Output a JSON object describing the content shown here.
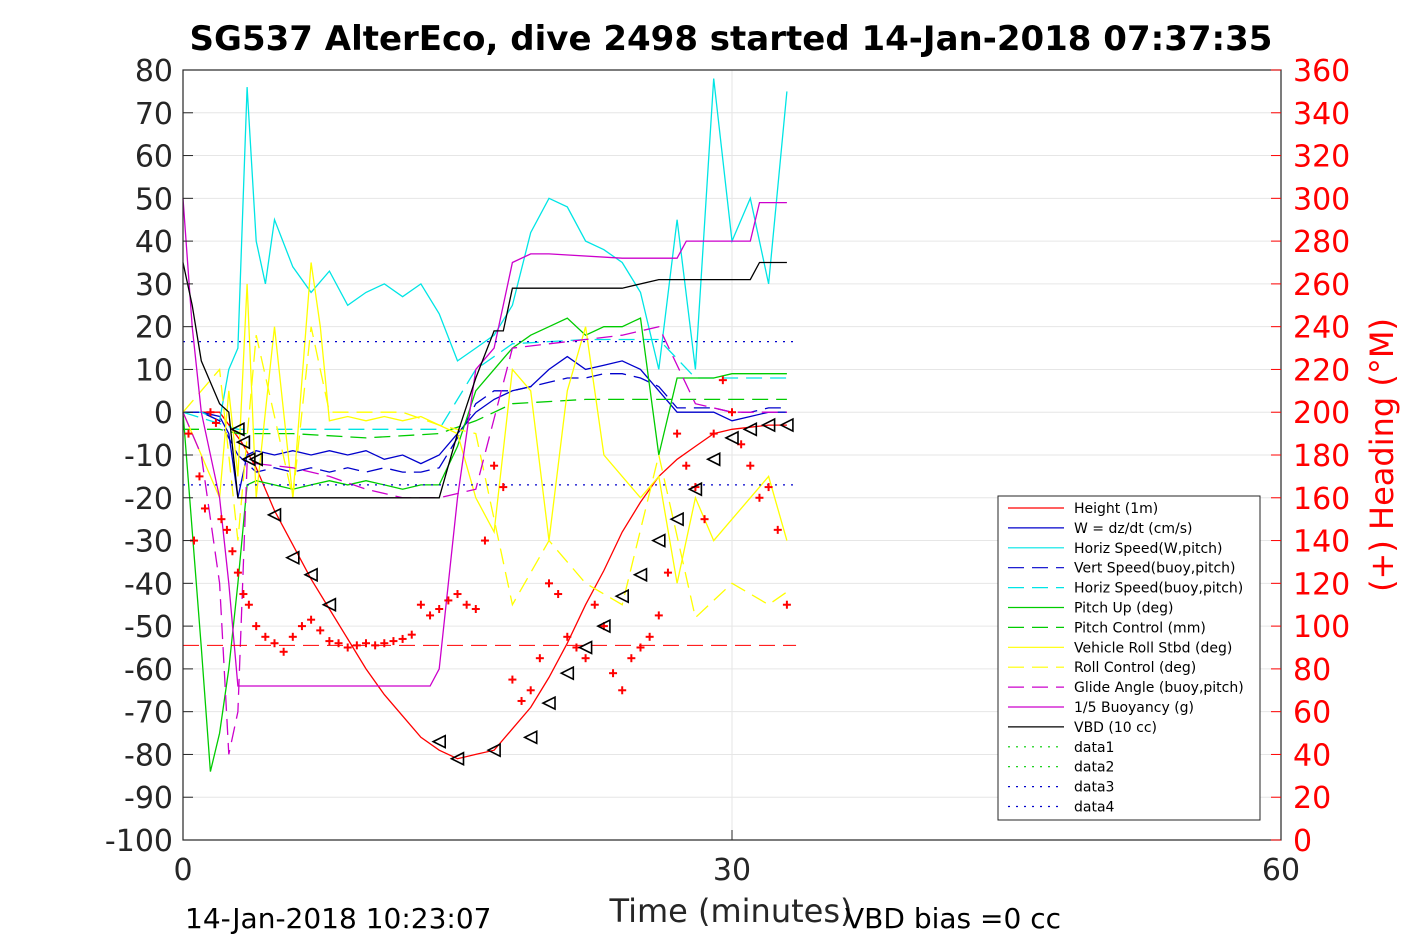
{
  "chart_data": {
    "type": "line",
    "title": "SG537 AlterEco, dive 2498 started 14-Jan-2018 07:37:35",
    "xlabel": "Time (minutes)",
    "ylabel_right": "(+) Heading (°M)",
    "xlim": [
      0,
      60
    ],
    "ylim_left": [
      -100,
      80
    ],
    "ylim_right": [
      0,
      360
    ],
    "x_ticks": [
      "0",
      "30",
      "60"
    ],
    "y_ticks_left": [
      "80",
      "70",
      "60",
      "50",
      "40",
      "30",
      "20",
      "10",
      "0",
      "-10",
      "-20",
      "-30",
      "-40",
      "-50",
      "-60",
      "-70",
      "-80",
      "-90",
      "-100"
    ],
    "y_ticks_right": [
      "360",
      "340",
      "320",
      "300",
      "280",
      "260",
      "240",
      "220",
      "200",
      "180",
      "160",
      "140",
      "120",
      "100",
      "80",
      "60",
      "40",
      "20",
      "0"
    ],
    "grid": true,
    "legend_position": "lower-right",
    "footer_left": "14-Jan-2018 10:23:07",
    "footer_right": "VBD bias =0 cc",
    "series": [
      {
        "name": "Height (1m)",
        "color": "#ff0000",
        "style": "solid",
        "x": [
          0,
          1,
          2,
          3.2,
          4,
          5,
          6,
          7,
          8,
          9,
          10,
          11,
          12,
          13,
          14,
          15,
          16,
          17,
          18,
          19,
          20,
          21,
          22,
          23,
          24,
          25,
          26,
          27,
          28,
          29,
          30,
          31,
          32,
          33
        ],
        "y": [
          0,
          0,
          0,
          -7,
          -13,
          -23,
          -31,
          -39,
          -46,
          -53,
          -60,
          -66,
          -71,
          -76,
          -79,
          -81,
          -80,
          -79,
          -74,
          -69,
          -62,
          -54,
          -45,
          -37,
          -28,
          -21,
          -15,
          -11,
          -8,
          -5,
          -4,
          -3.5,
          -3,
          -3
        ]
      },
      {
        "name": "W = dz/dt (cm/s)",
        "color": "#0000cc",
        "style": "solid",
        "x": [
          0,
          1,
          2,
          2.5,
          3,
          3.5,
          4,
          5,
          6,
          7,
          8,
          9,
          10,
          11,
          12,
          13,
          14,
          15,
          16,
          17,
          18,
          19,
          20,
          21,
          22,
          23,
          24,
          25,
          26,
          27,
          28,
          29,
          30,
          31,
          32,
          33
        ],
        "y": [
          0,
          0,
          -1,
          -5,
          -20,
          -10,
          -9,
          -10,
          -9,
          -10,
          -9,
          -10,
          -9,
          -11,
          -10,
          -12,
          -10,
          -5,
          0,
          3,
          5,
          6,
          10,
          13,
          10,
          11,
          12,
          10,
          5,
          0,
          0,
          0,
          -2,
          -1,
          0,
          0
        ]
      },
      {
        "name": "Horiz Speed(W,pitch)",
        "color": "#00e5e5",
        "style": "solid",
        "x": [
          0,
          1,
          2,
          2.5,
          3,
          3.5,
          4,
          4.5,
          5,
          6,
          7,
          8,
          9,
          10,
          11,
          12,
          13,
          14,
          15,
          16,
          17,
          18,
          19,
          20,
          21,
          22,
          23,
          24,
          25,
          26,
          27,
          28,
          29,
          30,
          31,
          32,
          33
        ],
        "y": [
          0,
          0,
          -2,
          10,
          15,
          76,
          40,
          30,
          45,
          34,
          28,
          33,
          25,
          28,
          30,
          27,
          30,
          23,
          12,
          15,
          18,
          25,
          42,
          50,
          48,
          40,
          38,
          35,
          28,
          10,
          45,
          10,
          78,
          40,
          50,
          30,
          75
        ]
      },
      {
        "name": "Vert Speed(buoy,pitch)",
        "color": "#0000cc",
        "style": "dashed",
        "x": [
          0,
          1,
          2,
          3,
          4,
          5,
          6,
          7,
          8,
          9,
          10,
          11,
          12,
          13,
          14,
          15,
          16,
          17,
          18,
          19,
          20,
          21,
          22,
          23,
          24,
          25,
          26,
          27,
          28,
          29,
          30,
          31,
          32,
          33
        ],
        "y": [
          0,
          0,
          -2,
          -10,
          -14,
          -13,
          -14,
          -13,
          -14,
          -13,
          -14,
          -13,
          -14,
          -14,
          -13,
          -6,
          2,
          5,
          5,
          6,
          7,
          8,
          8,
          9,
          9,
          8,
          6,
          1,
          1,
          1,
          0,
          0,
          1,
          1
        ]
      },
      {
        "name": "Horiz Speed(buoy,pitch)",
        "color": "#00e5e5",
        "style": "dashed",
        "x": [
          0,
          3,
          4,
          8,
          12,
          14,
          16,
          18,
          22,
          26,
          28,
          33
        ],
        "y": [
          0,
          -4,
          -4,
          -4,
          -4,
          -4,
          10,
          16,
          17,
          17,
          8,
          8
        ]
      },
      {
        "name": "Pitch Up (deg)",
        "color": "#00cc00",
        "style": "solid",
        "x": [
          0,
          1,
          1.5,
          2,
          2.5,
          3,
          3.5,
          4,
          5,
          6,
          7,
          8,
          9,
          10,
          11,
          12,
          13,
          14,
          15,
          16,
          17,
          18,
          19,
          20,
          21,
          22,
          23,
          24,
          25,
          26,
          27,
          28,
          29,
          30,
          31,
          32,
          33
        ],
        "y": [
          0,
          -55,
          -84,
          -75,
          -60,
          -40,
          -17,
          -16,
          -17,
          -18,
          -17,
          -16,
          -17,
          -16,
          -17,
          -18,
          -17,
          -17,
          -8,
          5,
          10,
          15,
          18,
          20,
          22,
          18,
          20,
          20,
          22,
          -10,
          8,
          8,
          8,
          9,
          9,
          9,
          9
        ]
      },
      {
        "name": "Pitch Control (mm)",
        "color": "#00cc00",
        "style": "dashed",
        "x": [
          0,
          2,
          3,
          6,
          10,
          14,
          16,
          18,
          22,
          26,
          33
        ],
        "y": [
          -4,
          -4,
          -5,
          -5,
          -6,
          -5,
          -2,
          2,
          3,
          3,
          3
        ]
      },
      {
        "name": "Vehicle Roll Stbd (deg)",
        "color": "#ffff00",
        "style": "solid",
        "x": [
          0,
          1,
          2,
          2.5,
          3,
          3.5,
          4,
          5,
          6,
          7,
          7.5,
          8,
          9,
          10,
          11,
          12,
          13,
          14,
          15,
          16,
          17,
          18,
          19,
          20,
          21,
          22,
          23,
          24,
          25,
          26,
          27,
          28,
          29,
          30,
          31,
          32,
          33
        ],
        "y": [
          0,
          -10,
          -20,
          5,
          -15,
          30,
          -20,
          20,
          -20,
          35,
          20,
          -2,
          -1,
          -2,
          -1,
          -2,
          -1,
          -3,
          -5,
          -20,
          -28,
          10,
          5,
          -30,
          5,
          20,
          -10,
          -15,
          -20,
          -15,
          -40,
          -20,
          -30,
          -25,
          -20,
          -15,
          -30
        ]
      },
      {
        "name": "Roll Control (deg)",
        "color": "#ffff00",
        "style": "dashed",
        "x": [
          0,
          2,
          3,
          4,
          6,
          7,
          8,
          12,
          14,
          16,
          18,
          20,
          22,
          24,
          26,
          28,
          30,
          32,
          33
        ],
        "y": [
          0,
          10,
          -30,
          18,
          -20,
          20,
          0,
          0,
          -3,
          -5,
          -45,
          -30,
          -40,
          -45,
          -10,
          -48,
          -40,
          -45,
          -42
        ]
      },
      {
        "name": "Glide Angle (buoy,pitch)",
        "color": "#cc00cc",
        "style": "dashed",
        "x": [
          0,
          1,
          2,
          2.5,
          3,
          3.5,
          4,
          6,
          8,
          10,
          12,
          14,
          16,
          18,
          20,
          22,
          24,
          26,
          28,
          30,
          32,
          33
        ],
        "y": [
          0,
          -10,
          -40,
          -80,
          -70,
          -12,
          -12,
          -13,
          -15,
          -18,
          -20,
          -20,
          -18,
          15,
          16,
          17,
          18,
          20,
          2,
          0,
          0,
          0
        ]
      },
      {
        "name": "1/5 Buoyancy (g)",
        "color": "#cc00cc",
        "style": "solid",
        "x": [
          0,
          0.5,
          1,
          2,
          2.5,
          3,
          3.5,
          4,
          8,
          12,
          13.5,
          14,
          15,
          16,
          17,
          18,
          19,
          20,
          24,
          27,
          27.5,
          29,
          31,
          31.5,
          33
        ],
        "y": [
          50,
          20,
          0,
          -20,
          -40,
          -64,
          -64,
          -64,
          -64,
          -64,
          -64,
          -60,
          -20,
          10,
          15,
          35,
          37,
          37,
          36,
          36,
          40,
          40,
          40,
          49,
          49
        ]
      },
      {
        "name": "VBD (10 cc)",
        "color": "#000000",
        "style": "solid",
        "x": [
          0,
          0.5,
          1,
          2,
          2.5,
          3,
          4,
          8,
          12,
          14,
          15,
          16,
          17,
          17.5,
          18,
          20,
          24,
          26,
          27,
          30,
          31,
          31.5,
          33
        ],
        "y": [
          35,
          25,
          12,
          2,
          0,
          -20,
          -20,
          -20,
          -20,
          -20,
          -5,
          8,
          19,
          19,
          29,
          29,
          29,
          31,
          31,
          31,
          31,
          35,
          35
        ]
      },
      {
        "name": "data1",
        "color": "#00cc00",
        "style": "dotted",
        "x": [],
        "y": []
      },
      {
        "name": "data2",
        "color": "#00cc00",
        "style": "dotted",
        "x": [],
        "y": []
      },
      {
        "name": "data3",
        "color": "#0000cc",
        "style": "dotted",
        "x": [
          0,
          33.5
        ],
        "y": [
          16.5,
          16.5
        ]
      },
      {
        "name": "data4",
        "color": "#0000cc",
        "style": "dotted",
        "x": [
          0,
          33.5
        ],
        "y": [
          -17,
          -17
        ]
      }
    ],
    "heading": {
      "axis": "right",
      "color": "#ff0000",
      "marker": "+",
      "mean": 91,
      "x": [
        0.3,
        0.6,
        0.9,
        1.2,
        1.5,
        1.8,
        2.1,
        2.4,
        2.7,
        3.0,
        3.3,
        3.6,
        4.0,
        4.5,
        5.0,
        5.5,
        6.0,
        6.5,
        7.0,
        7.5,
        8.0,
        8.5,
        9.0,
        9.5,
        10,
        10.5,
        11,
        11.5,
        12,
        12.5,
        13,
        13.5,
        14,
        14.5,
        15,
        15.5,
        16,
        16.5,
        17,
        17.5,
        18,
        18.5,
        19,
        19.5,
        20,
        20.5,
        21,
        21.5,
        22,
        22.5,
        23,
        23.5,
        24,
        24.5,
        25,
        25.5,
        26,
        26.5,
        27,
        27.5,
        28,
        28.5,
        29,
        29.5,
        30,
        30.5,
        31,
        31.5,
        32,
        32.5,
        33
      ],
      "y": [
        190,
        140,
        170,
        155,
        200,
        195,
        150,
        145,
        135,
        125,
        115,
        110,
        100,
        95,
        92,
        88,
        95,
        100,
        103,
        98,
        93,
        92,
        90,
        91,
        92,
        91,
        92,
        93,
        94,
        96,
        110,
        105,
        108,
        112,
        115,
        110,
        108,
        140,
        175,
        165,
        75,
        65,
        70,
        85,
        120,
        115,
        95,
        90,
        85,
        110,
        100,
        78,
        70,
        85,
        90,
        95,
        105,
        125,
        190,
        175,
        165,
        150,
        190,
        215,
        200,
        185,
        175,
        160,
        165,
        145,
        110
      ]
    },
    "direction_markers": {
      "color": "#000000",
      "x": [
        3.0,
        3.3,
        3.6,
        4.0,
        5.0,
        6.0,
        7.0,
        8.0,
        14.0,
        15.0,
        17.0,
        19.0,
        20.0,
        21.0,
        22.0,
        23.0,
        24.0,
        25.0,
        26.0,
        27.0,
        28.0,
        29.0,
        30.0,
        31.0,
        32.0,
        33.0
      ],
      "y": [
        -4,
        -7,
        -11,
        -11,
        -24,
        -34,
        -38,
        -45,
        -77,
        -81,
        -79,
        -76,
        -68,
        -61,
        -55,
        -50,
        -43,
        -38,
        -30,
        -25,
        -18,
        -11,
        -6,
        -4,
        -3,
        -3
      ]
    }
  }
}
